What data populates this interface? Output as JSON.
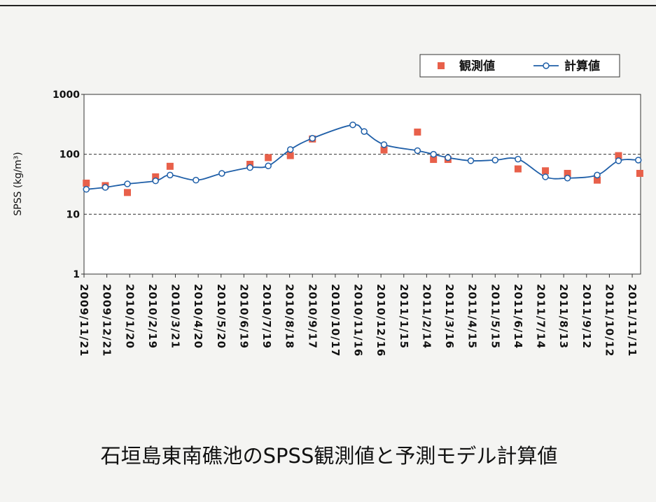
{
  "chart_data": {
    "type": "line",
    "title": "石垣島東南礁池のSPSS観測値と予測モデル計算値",
    "y_label": "SPSS (kg/m³)",
    "log_scale": true,
    "grid": true,
    "legend": "top-right",
    "xlim": [
      "2009/11/21",
      "2011/11/22"
    ],
    "xticks": [
      "2009/11/21",
      "2009/12/21",
      "2010/1/20",
      "2010/2/19",
      "2010/3/21",
      "2010/4/20",
      "2010/5/20",
      "2010/6/19",
      "2010/7/19",
      "2010/8/18",
      "2010/9/17",
      "2010/10/17",
      "2010/11/16",
      "2010/12/16",
      "2011/1/15",
      "2011/2/14",
      "2011/3/16",
      "2011/4/15",
      "2011/5/15",
      "2011/6/14",
      "2011/7/14",
      "2011/8/13",
      "2011/9/12",
      "2011/10/12",
      "2011/11/11"
    ],
    "ylim": [
      1,
      1000
    ],
    "yticks": [
      1,
      10,
      100,
      1000
    ],
    "series": [
      {
        "name": "観測値",
        "color": "#e8604a",
        "marker": "square",
        "x": [
          "2009/11/24",
          "2009/12/19",
          "2010/1/17",
          "2010/2/23",
          "2010/3/14",
          "2010/6/27",
          "2010/7/21",
          "2010/8/19",
          "2010/9/17",
          "2010/12/20",
          "2011/2/2",
          "2011/2/23",
          "2011/3/14",
          "2011/6/14",
          "2011/7/20",
          "2011/8/18",
          "2011/9/26",
          "2011/10/24",
          "2011/11/21"
        ],
        "values": [
          33,
          30,
          23,
          42,
          63,
          68,
          88,
          95,
          180,
          118,
          235,
          82,
          82,
          57,
          53,
          48,
          37,
          95,
          48
        ]
      },
      {
        "name": "計算値",
        "color": "#1f5fa8",
        "marker": "circle",
        "x": [
          "2009/11/24",
          "2009/12/19",
          "2010/1/17",
          "2010/2/23",
          "2010/3/14",
          "2010/4/17",
          "2010/5/21",
          "2010/6/27",
          "2010/7/21",
          "2010/8/19",
          "2010/9/17",
          "2010/11/9",
          "2010/11/24",
          "2010/12/20",
          "2011/2/2",
          "2011/2/23",
          "2011/3/14",
          "2011/4/13",
          "2011/5/15",
          "2011/6/14",
          "2011/7/20",
          "2011/8/18",
          "2011/9/26",
          "2011/10/24",
          "2011/11/19"
        ],
        "values": [
          26,
          28,
          32,
          36,
          45,
          37,
          48,
          60,
          64,
          120,
          185,
          310,
          240,
          145,
          115,
          100,
          88,
          78,
          80,
          83,
          42,
          40,
          45,
          78,
          80
        ]
      }
    ]
  }
}
